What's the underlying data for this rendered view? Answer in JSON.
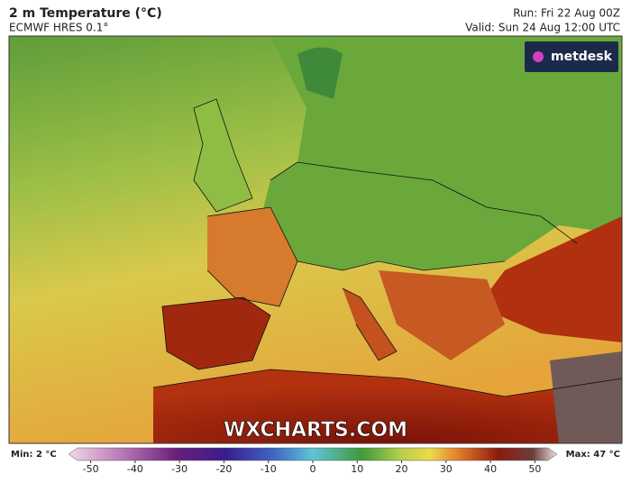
{
  "header": {
    "title": "2 m Temperature (°C)",
    "subtitle": "ECMWF HRES 0.1°",
    "run": "Run: Fri 22 Aug 00Z",
    "valid": "Valid: Sun 24 Aug 12:00 UTC"
  },
  "logo": "metdesk",
  "watermark": "WXCHARTS.COM",
  "colorbar": {
    "min_label": "Min: 2 °C",
    "max_label": "Max: 47 °C",
    "range": [
      -55,
      55
    ],
    "ticks": [
      -50,
      -40,
      -30,
      -20,
      -10,
      0,
      10,
      20,
      30,
      40,
      50
    ]
  }
}
